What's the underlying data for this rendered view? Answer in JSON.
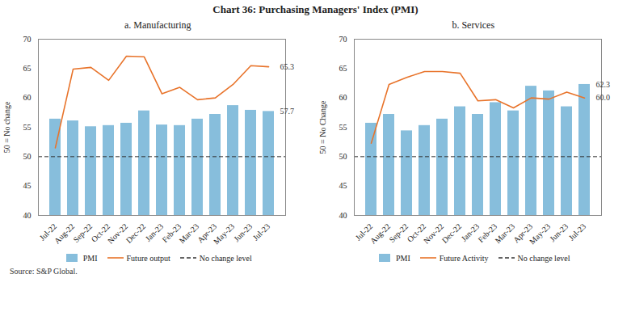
{
  "title": "Chart 36: Purchasing Managers' Index (PMI)",
  "source": "Source: S&P Global.",
  "chart_data": [
    {
      "type": "bar",
      "title": "a. Manufacturing",
      "categories": [
        "Jul-22",
        "Aug-22",
        "Sep-22",
        "Oct-22",
        "Nov-22",
        "Dec-22",
        "Jan-23",
        "Feb-23",
        "Mar-23",
        "Apr-23",
        "May-23",
        "Jun-23",
        "Jul-23"
      ],
      "series": [
        {
          "name": "PMI",
          "type": "bar",
          "color": "#87BEDC",
          "values": [
            56.4,
            56.1,
            55.1,
            55.3,
            55.7,
            57.8,
            55.4,
            55.3,
            56.4,
            57.2,
            58.7,
            57.9,
            57.7
          ]
        },
        {
          "name": "Future output",
          "type": "line",
          "color": "#E8732A",
          "line_style": "solid",
          "values": [
            51.5,
            64.9,
            65.2,
            63.0,
            67.1,
            67.0,
            60.7,
            61.8,
            59.7,
            60.0,
            62.3,
            65.5,
            65.3
          ]
        }
      ],
      "hlines": [
        {
          "name": "No change level",
          "value": 50,
          "color": "#333333",
          "line_style": "dashed"
        }
      ],
      "annotations": [
        {
          "text": "57.7",
          "x": "Jul-23",
          "y": 57.7
        },
        {
          "text": "65.3",
          "x": "Jul-23",
          "y": 65.3
        }
      ],
      "ylabel": "50 = No change",
      "ylim": [
        40,
        70
      ],
      "yticks": [
        40,
        45,
        50,
        55,
        60,
        65,
        70
      ],
      "grid": false,
      "legend": "bottom"
    },
    {
      "type": "bar",
      "title": "b. Services",
      "categories": [
        "Jul-22",
        "Aug-22",
        "Sep-22",
        "Oct-22",
        "Nov-22",
        "Dec-22",
        "Jan-23",
        "Feb-23",
        "Mar-23",
        "Apr-23",
        "May-23",
        "Jun-23",
        "Jul-23"
      ],
      "series": [
        {
          "name": "PMI",
          "type": "bar",
          "color": "#87BEDC",
          "values": [
            55.7,
            57.2,
            54.4,
            55.3,
            56.4,
            58.5,
            57.2,
            59.2,
            57.8,
            62.0,
            61.2,
            58.5,
            62.3
          ]
        },
        {
          "name": "Future Activity",
          "type": "line",
          "color": "#E8732A",
          "line_style": "solid",
          "values": [
            52.3,
            62.3,
            63.5,
            64.5,
            64.5,
            64.2,
            59.5,
            59.7,
            58.3,
            60.0,
            59.8,
            61.0,
            60.0
          ]
        }
      ],
      "hlines": [
        {
          "name": "No change level",
          "value": 50,
          "color": "#333333",
          "line_style": "dashed"
        }
      ],
      "annotations": [
        {
          "text": "62.3",
          "x": "Jul-23",
          "y": 62.3
        },
        {
          "text": "60.0",
          "x": "Jul-23",
          "y": 60.0
        }
      ],
      "ylabel": "50 = No Change",
      "ylim": [
        40,
        70
      ],
      "yticks": [
        40,
        45,
        50,
        55,
        60,
        65,
        70
      ],
      "grid": false,
      "legend": "bottom"
    }
  ]
}
